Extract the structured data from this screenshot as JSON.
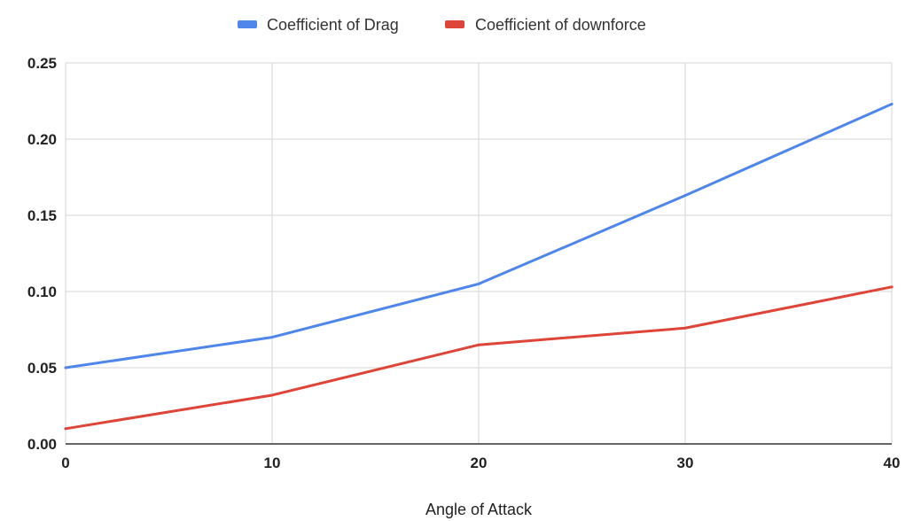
{
  "chart_data": {
    "type": "line",
    "title": "",
    "xlabel": "Angle of Attack",
    "ylabel": "",
    "x": [
      0,
      10,
      20,
      30,
      40
    ],
    "xlim": [
      0,
      40
    ],
    "ylim": [
      0,
      0.25
    ],
    "x_ticks": [
      0,
      10,
      20,
      30,
      40
    ],
    "y_ticks": [
      0,
      0.05,
      0.1,
      0.15,
      0.2,
      0.25
    ],
    "x_tick_labels": [
      "0",
      "10",
      "20",
      "30",
      "40"
    ],
    "y_tick_labels": [
      "0.00",
      "0.05",
      "0.10",
      "0.15",
      "0.20",
      "0.25"
    ],
    "series": [
      {
        "name": "Coefficient of Drag",
        "color": "#4f86ec",
        "values": [
          0.05,
          0.07,
          0.105,
          0.163,
          0.223
        ]
      },
      {
        "name": "Coefficient of downforce",
        "color": "#de4437",
        "values": [
          0.01,
          0.032,
          0.065,
          0.076,
          0.103
        ]
      }
    ],
    "grid": true,
    "legend_position": "top-center"
  }
}
